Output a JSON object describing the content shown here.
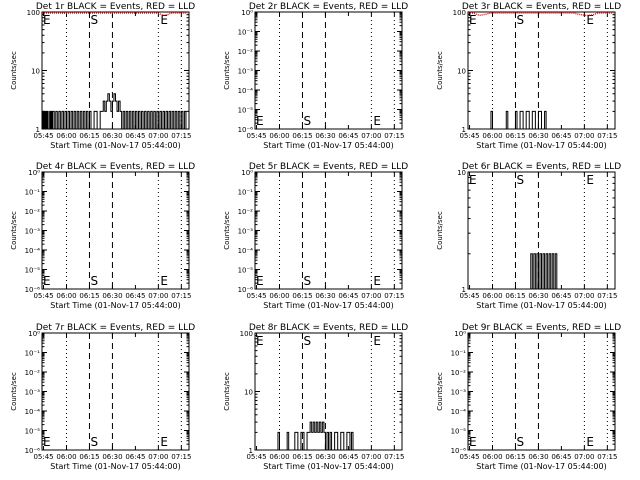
{
  "x_tick_labels": [
    "05:45",
    "06:00",
    "06:15",
    "06:30",
    "06:45",
    "07:00",
    "07:15"
  ],
  "xlabel": "Start Time (01-Nov-17 05:44:00)",
  "ylabel": "Counts/sec",
  "colors": {
    "events": "#000000",
    "lld": "#ff0000"
  },
  "chart_data": [
    {
      "type": "line",
      "title": "Det 1r BLACK = Events, RED = LLD",
      "yscale": "log",
      "yticks": [
        "1",
        "10",
        "100"
      ],
      "start_marker": "S",
      "end_marker": "E",
      "events": [
        [
          0.3,
          1
        ],
        [
          0.5,
          2
        ],
        [
          1.0,
          1
        ],
        [
          1.5,
          2
        ],
        [
          2.0,
          1
        ],
        [
          2.5,
          2
        ],
        [
          3.0,
          1
        ],
        [
          3.5,
          2
        ],
        [
          4.0,
          1
        ],
        [
          5.0,
          2
        ],
        [
          5.5,
          1
        ],
        [
          6.0,
          2
        ],
        [
          6.5,
          1
        ],
        [
          7.0,
          2
        ],
        [
          8.0,
          1
        ],
        [
          9.0,
          2
        ],
        [
          10.0,
          1
        ],
        [
          11.0,
          2
        ],
        [
          12.0,
          1
        ],
        [
          13.0,
          2
        ],
        [
          14.0,
          1
        ],
        [
          15.0,
          2
        ],
        [
          16.0,
          1
        ],
        [
          17.0,
          2
        ],
        [
          18.0,
          1
        ],
        [
          19.0,
          2
        ],
        [
          20.0,
          1
        ],
        [
          21.0,
          2
        ],
        [
          22.0,
          1
        ],
        [
          23.0,
          2
        ],
        [
          24.0,
          1
        ],
        [
          25.0,
          2
        ],
        [
          26.0,
          1
        ],
        [
          27.0,
          2
        ],
        [
          28.0,
          1
        ],
        [
          29.0,
          2
        ],
        [
          30.0,
          1
        ],
        [
          31.0,
          2
        ],
        [
          32.0,
          1
        ],
        [
          34.0,
          2
        ],
        [
          36.0,
          1
        ],
        [
          38.0,
          2
        ],
        [
          40.0,
          3
        ],
        [
          41.0,
          2
        ],
        [
          42.0,
          3
        ],
        [
          43.0,
          4
        ],
        [
          44.0,
          3
        ],
        [
          45.0,
          2
        ],
        [
          46.0,
          3
        ],
        [
          47.0,
          4
        ],
        [
          48.0,
          3
        ],
        [
          49.0,
          2
        ],
        [
          50.0,
          3
        ],
        [
          51.0,
          2
        ],
        [
          52.0,
          1
        ],
        [
          53.0,
          2
        ],
        [
          54.0,
          1
        ],
        [
          55.0,
          2
        ],
        [
          56.0,
          1
        ],
        [
          57.0,
          2
        ],
        [
          58.0,
          1
        ],
        [
          59.0,
          2
        ],
        [
          60.0,
          1
        ],
        [
          61.0,
          2
        ],
        [
          62.0,
          1
        ],
        [
          63.0,
          2
        ],
        [
          64.0,
          1
        ],
        [
          65.0,
          2
        ],
        [
          66.0,
          1
        ],
        [
          67.0,
          2
        ],
        [
          68.0,
          1
        ],
        [
          69.0,
          2
        ],
        [
          70.0,
          1
        ],
        [
          71.0,
          2
        ],
        [
          72.0,
          1
        ],
        [
          73.0,
          2
        ],
        [
          74.0,
          1
        ],
        [
          75.0,
          2
        ],
        [
          76.0,
          1
        ],
        [
          77.0,
          2
        ],
        [
          78.0,
          1
        ],
        [
          79.0,
          2
        ],
        [
          80.0,
          1
        ],
        [
          81.0,
          2
        ],
        [
          82.0,
          1
        ],
        [
          83.0,
          2
        ],
        [
          84.0,
          1
        ],
        [
          85.0,
          2
        ],
        [
          86.0,
          1
        ],
        [
          87.0,
          2
        ],
        [
          88.0,
          1
        ],
        [
          89.0,
          2
        ],
        [
          90.0,
          1
        ],
        [
          91.0,
          2
        ],
        [
          92.0,
          1
        ],
        [
          93.0,
          2
        ],
        [
          94.0,
          1
        ],
        [
          95.0,
          1
        ]
      ],
      "lld": [
        [
          0,
          100
        ],
        [
          4,
          98
        ],
        [
          8,
          100
        ],
        [
          12,
          97
        ],
        [
          14,
          95
        ],
        [
          16,
          98
        ],
        [
          20,
          100
        ],
        [
          24,
          99
        ],
        [
          28,
          100
        ],
        [
          32,
          100
        ],
        [
          36,
          100
        ],
        [
          40,
          100
        ],
        [
          44,
          100
        ],
        [
          48,
          100
        ],
        [
          52,
          100
        ],
        [
          56,
          100
        ],
        [
          60,
          100
        ],
        [
          64,
          100
        ],
        [
          68,
          100
        ],
        [
          72,
          100
        ],
        [
          74,
          98
        ],
        [
          76,
          95
        ],
        [
          78,
          90
        ],
        [
          80,
          88
        ],
        [
          82,
          90
        ],
        [
          84,
          95
        ],
        [
          86,
          100
        ],
        [
          90,
          100
        ],
        [
          95,
          100
        ]
      ]
    },
    {
      "type": "line",
      "title": "Det 2r BLACK = Events, RED = LLD",
      "yscale": "log",
      "yticks": [
        "10⁻⁶",
        "10⁻⁵",
        "10⁻⁴",
        "10⁻³",
        "10⁻²",
        "10⁻¹",
        "10⁰"
      ],
      "start_marker": "S",
      "end_marker": "E",
      "events": [],
      "lld": []
    },
    {
      "type": "line",
      "title": "Det 3r BLACK = Events, RED = LLD",
      "yscale": "log",
      "yticks": [
        "1",
        "10",
        "100"
      ],
      "start_marker": "S",
      "end_marker": "E",
      "events": [
        [
          14,
          1
        ],
        [
          15,
          2
        ],
        [
          16,
          1
        ],
        [
          24,
          1
        ],
        [
          25,
          2
        ],
        [
          26,
          1
        ],
        [
          30,
          1
        ],
        [
          31,
          2
        ],
        [
          32,
          1
        ],
        [
          34,
          2
        ],
        [
          36,
          1
        ],
        [
          38,
          2
        ],
        [
          40,
          1
        ],
        [
          42,
          2
        ],
        [
          44,
          1
        ],
        [
          46,
          2
        ],
        [
          48,
          1
        ],
        [
          50,
          2
        ],
        [
          51,
          1
        ]
      ],
      "lld": [
        [
          0,
          100
        ],
        [
          2,
          98
        ],
        [
          4,
          95
        ],
        [
          6,
          90
        ],
        [
          8,
          88
        ],
        [
          10,
          90
        ],
        [
          12,
          92
        ],
        [
          14,
          95
        ],
        [
          16,
          98
        ],
        [
          20,
          100
        ],
        [
          24,
          99
        ],
        [
          28,
          100
        ],
        [
          32,
          100
        ],
        [
          36,
          100
        ],
        [
          40,
          100
        ],
        [
          44,
          100
        ],
        [
          48,
          100
        ],
        [
          52,
          100
        ],
        [
          56,
          100
        ],
        [
          60,
          100
        ],
        [
          64,
          100
        ],
        [
          68,
          98
        ],
        [
          70,
          95
        ],
        [
          72,
          92
        ],
        [
          74,
          90
        ],
        [
          76,
          88
        ],
        [
          78,
          87
        ],
        [
          80,
          88
        ],
        [
          82,
          90
        ],
        [
          84,
          95
        ],
        [
          86,
          100
        ],
        [
          90,
          100
        ],
        [
          95,
          100
        ]
      ]
    },
    {
      "type": "line",
      "title": "Det 4r BLACK = Events, RED = LLD",
      "yscale": "log",
      "yticks": [
        "10⁻⁶",
        "10⁻⁵",
        "10⁻⁴",
        "10⁻³",
        "10⁻²",
        "10⁻¹",
        "10⁰"
      ],
      "start_marker": "S",
      "end_marker": "E",
      "events": [],
      "lld": []
    },
    {
      "type": "line",
      "title": "Det 5r BLACK = Events, RED = LLD",
      "yscale": "log",
      "yticks": [
        "10⁻⁶",
        "10⁻⁵",
        "10⁻⁴",
        "10⁻³",
        "10⁻²",
        "10⁻¹",
        "10⁰"
      ],
      "start_marker": "S",
      "end_marker": "E",
      "events": [],
      "lld": []
    },
    {
      "type": "line",
      "title": "Det 6r BLACK = Events, RED = LLD",
      "yscale": "log",
      "yticks": [
        "1",
        "10"
      ],
      "start_marker": "S",
      "end_marker": "E",
      "events": [
        [
          40,
          1
        ],
        [
          41,
          2
        ],
        [
          42,
          1
        ],
        [
          43,
          2
        ],
        [
          44,
          1
        ],
        [
          45,
          2
        ],
        [
          46,
          1
        ],
        [
          47,
          2
        ],
        [
          48,
          1
        ],
        [
          49,
          2
        ],
        [
          50,
          1
        ],
        [
          51,
          2
        ],
        [
          52,
          1
        ],
        [
          53,
          2
        ],
        [
          54,
          1
        ],
        [
          55,
          2
        ],
        [
          56,
          1
        ],
        [
          57,
          2
        ],
        [
          58,
          1
        ]
      ],
      "lld": []
    },
    {
      "type": "line",
      "title": "Det 7r BLACK = Events, RED = LLD",
      "yscale": "log",
      "yticks": [
        "10⁻⁶",
        "10⁻⁵",
        "10⁻⁴",
        "10⁻³",
        "10⁻²",
        "10⁻¹",
        "10⁰"
      ],
      "start_marker": "S",
      "end_marker": "E",
      "events": [],
      "lld": []
    },
    {
      "type": "line",
      "title": "Det 8r BLACK = Events, RED = LLD",
      "yscale": "log",
      "yticks": [
        "1",
        "10",
        "100"
      ],
      "start_marker": "S",
      "end_marker": "E",
      "events": [
        [
          14,
          1
        ],
        [
          15,
          2
        ],
        [
          16,
          1
        ],
        [
          20,
          1
        ],
        [
          21,
          2
        ],
        [
          22,
          1
        ],
        [
          26,
          2
        ],
        [
          28,
          1
        ],
        [
          30,
          2
        ],
        [
          32,
          1
        ],
        [
          34,
          2
        ],
        [
          36,
          3
        ],
        [
          37,
          2
        ],
        [
          38,
          3
        ],
        [
          39,
          2
        ],
        [
          40,
          3
        ],
        [
          41,
          2
        ],
        [
          42,
          3
        ],
        [
          43,
          2
        ],
        [
          44,
          3
        ],
        [
          45,
          2
        ],
        [
          46,
          1
        ],
        [
          47,
          2
        ],
        [
          48,
          1
        ],
        [
          49,
          2
        ],
        [
          50,
          1
        ],
        [
          52,
          2
        ],
        [
          54,
          1
        ],
        [
          56,
          2
        ],
        [
          58,
          1
        ],
        [
          60,
          2
        ],
        [
          62,
          1
        ],
        [
          63,
          2
        ],
        [
          64,
          1
        ]
      ],
      "lld": []
    },
    {
      "type": "line",
      "title": "Det 9r BLACK = Events, RED = LLD",
      "yscale": "log",
      "yticks": [
        "10⁻⁶",
        "10⁻⁵",
        "10⁻⁴",
        "10⁻³",
        "10⁻²",
        "10⁻¹",
        "10⁰"
      ],
      "start_marker": "S",
      "end_marker": "E",
      "events": [],
      "lld": []
    }
  ]
}
